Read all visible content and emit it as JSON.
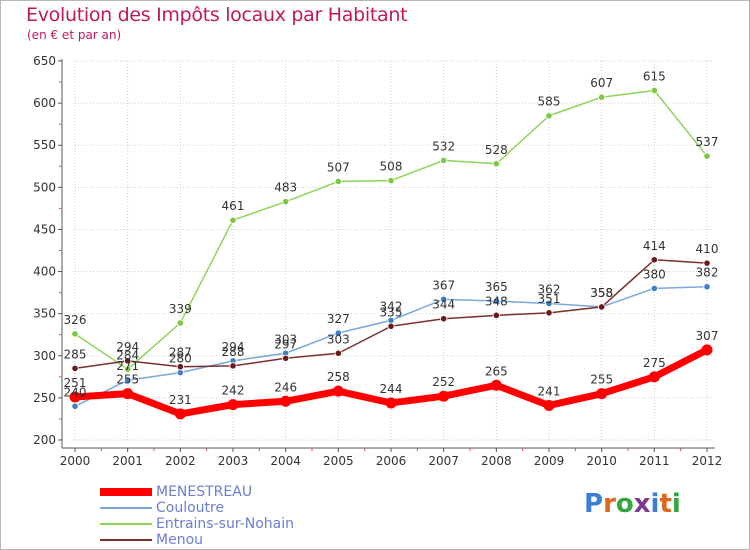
{
  "header": {
    "title": "Evolution des Impôts locaux par Habitant",
    "subtitle": "(en € et par an)"
  },
  "logo": {
    "text": "Proxiti",
    "letter_colors": [
      "#3a7fd6",
      "#e0661c",
      "#35a540",
      "#7a3a95",
      "#3a7fd6",
      "#e0661c",
      "#35a540"
    ]
  },
  "chart_data": {
    "type": "line",
    "x": [
      2000,
      2001,
      2002,
      2003,
      2004,
      2005,
      2006,
      2007,
      2008,
      2009,
      2010,
      2011,
      2012
    ],
    "ylim": [
      200,
      650
    ],
    "yticks": [
      200,
      250,
      300,
      350,
      400,
      450,
      500,
      550,
      600,
      650
    ],
    "grid": true,
    "legend_position": "bottom-left",
    "series": [
      {
        "name": "MENESTREAU",
        "color": "#ff0000",
        "width": 7,
        "marker_color": "#ff0000",
        "values": [
          251,
          255,
          231,
          242,
          246,
          258,
          244,
          252,
          265,
          241,
          255,
          275,
          307
        ]
      },
      {
        "name": "Couloutre",
        "color": "#7aa8d8",
        "width": 1.5,
        "marker_color": "#3d80c8",
        "values": [
          240,
          271,
          280,
          294,
          303,
          327,
          342,
          367,
          365,
          362,
          358,
          380,
          382
        ]
      },
      {
        "name": "Entrains-sur-Nohain",
        "color": "#8fd45a",
        "width": 1.5,
        "marker_color": "#7ac943",
        "values": [
          326,
          284,
          339,
          461,
          483,
          507,
          508,
          532,
          528,
          585,
          607,
          615,
          537
        ]
      },
      {
        "name": "Menou",
        "color": "#7a2f2f",
        "width": 1.5,
        "marker_color": "#6a1a1a",
        "values": [
          285,
          294,
          287,
          288,
          297,
          303,
          335,
          344,
          348,
          351,
          358,
          414,
          410
        ]
      }
    ],
    "data_labels": {
      "MENESTREAU": [
        "251",
        "255",
        "231",
        "242",
        "246",
        "258",
        "244",
        "252",
        "265",
        "241",
        "255",
        "275",
        "307"
      ],
      "Couloutre": [
        "240",
        "271",
        "280",
        "294",
        "303",
        "327",
        "342",
        "367",
        "365",
        "362",
        "358",
        "380",
        "382"
      ],
      "Entrains-sur-Nohain": [
        "326",
        "284",
        "339",
        "461",
        "483",
        "507",
        "508",
        "532",
        "528",
        "585",
        "607",
        "615",
        "537"
      ],
      "Menou": [
        "285",
        "294",
        "287",
        "288",
        "297",
        "303",
        "335",
        "344",
        "348",
        "351",
        "358",
        "414",
        "410"
      ]
    }
  }
}
